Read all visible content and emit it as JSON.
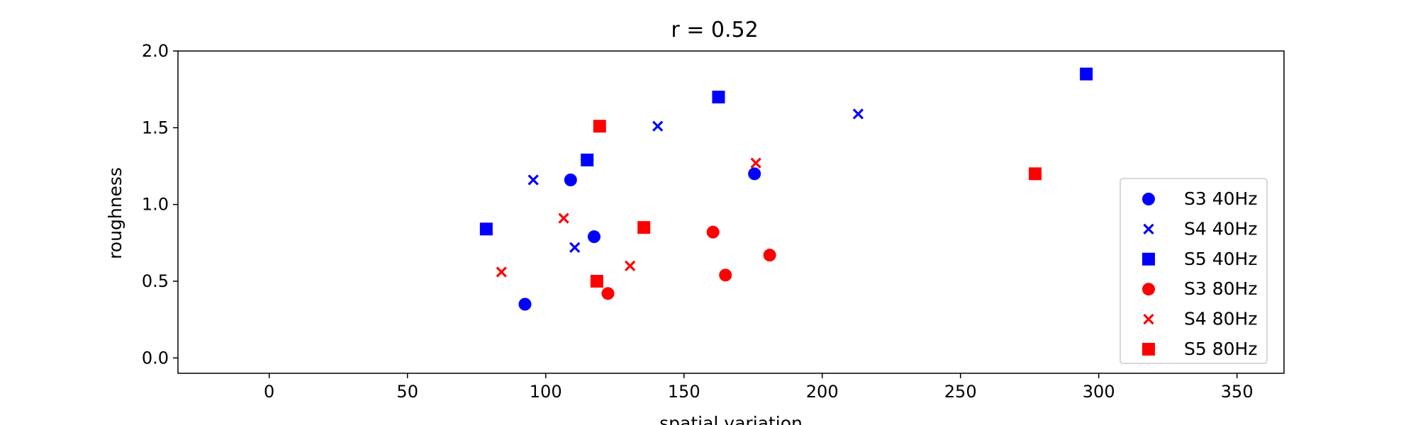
{
  "chart_data": {
    "type": "scatter",
    "title": "r = 0.52",
    "xlabel": "spatial variation",
    "ylabel": "roughness",
    "xlim": [
      -33,
      367
    ],
    "ylim": [
      -0.1,
      2.0
    ],
    "xticks": [
      0,
      50,
      100,
      150,
      200,
      250,
      300,
      350
    ],
    "yticks": [
      0.0,
      0.5,
      1.0,
      1.5,
      2.0
    ],
    "xtick_labels": [
      "0",
      "50",
      "100",
      "150",
      "200",
      "250",
      "300",
      "350"
    ],
    "ytick_labels": [
      "0.0",
      "0.5",
      "1.0",
      "1.5",
      "2.0"
    ],
    "grid": false,
    "legend_position": "lower-right",
    "series": [
      {
        "name": "S3 40Hz",
        "color": "#0000ff",
        "marker": "circle",
        "x": [
          92.5,
          109,
          117.5,
          175.5
        ],
        "y": [
          0.35,
          1.16,
          0.79,
          1.2
        ]
      },
      {
        "name": "S4 40Hz",
        "color": "#0000ff",
        "marker": "x",
        "x": [
          95.5,
          110.5,
          140.5,
          213
        ],
        "y": [
          1.16,
          0.72,
          1.51,
          1.59
        ]
      },
      {
        "name": "S5 40Hz",
        "color": "#0000ff",
        "marker": "square",
        "x": [
          78.5,
          115,
          162.5,
          295.5
        ],
        "y": [
          0.84,
          1.29,
          1.7,
          1.85
        ]
      },
      {
        "name": "S3 80Hz",
        "color": "#ff0000",
        "marker": "circle",
        "x": [
          122.5,
          160.5,
          165,
          181
        ],
        "y": [
          0.42,
          0.82,
          0.54,
          0.67
        ]
      },
      {
        "name": "S4 80Hz",
        "color": "#ff0000",
        "marker": "x",
        "x": [
          84,
          106.5,
          130.5,
          176
        ],
        "y": [
          0.56,
          0.91,
          0.6,
          1.27
        ]
      },
      {
        "name": "S5 80Hz",
        "color": "#ff0000",
        "marker": "square",
        "x": [
          118.5,
          119.5,
          135.5,
          277
        ],
        "y": [
          0.5,
          1.51,
          0.85,
          1.2
        ]
      }
    ]
  }
}
